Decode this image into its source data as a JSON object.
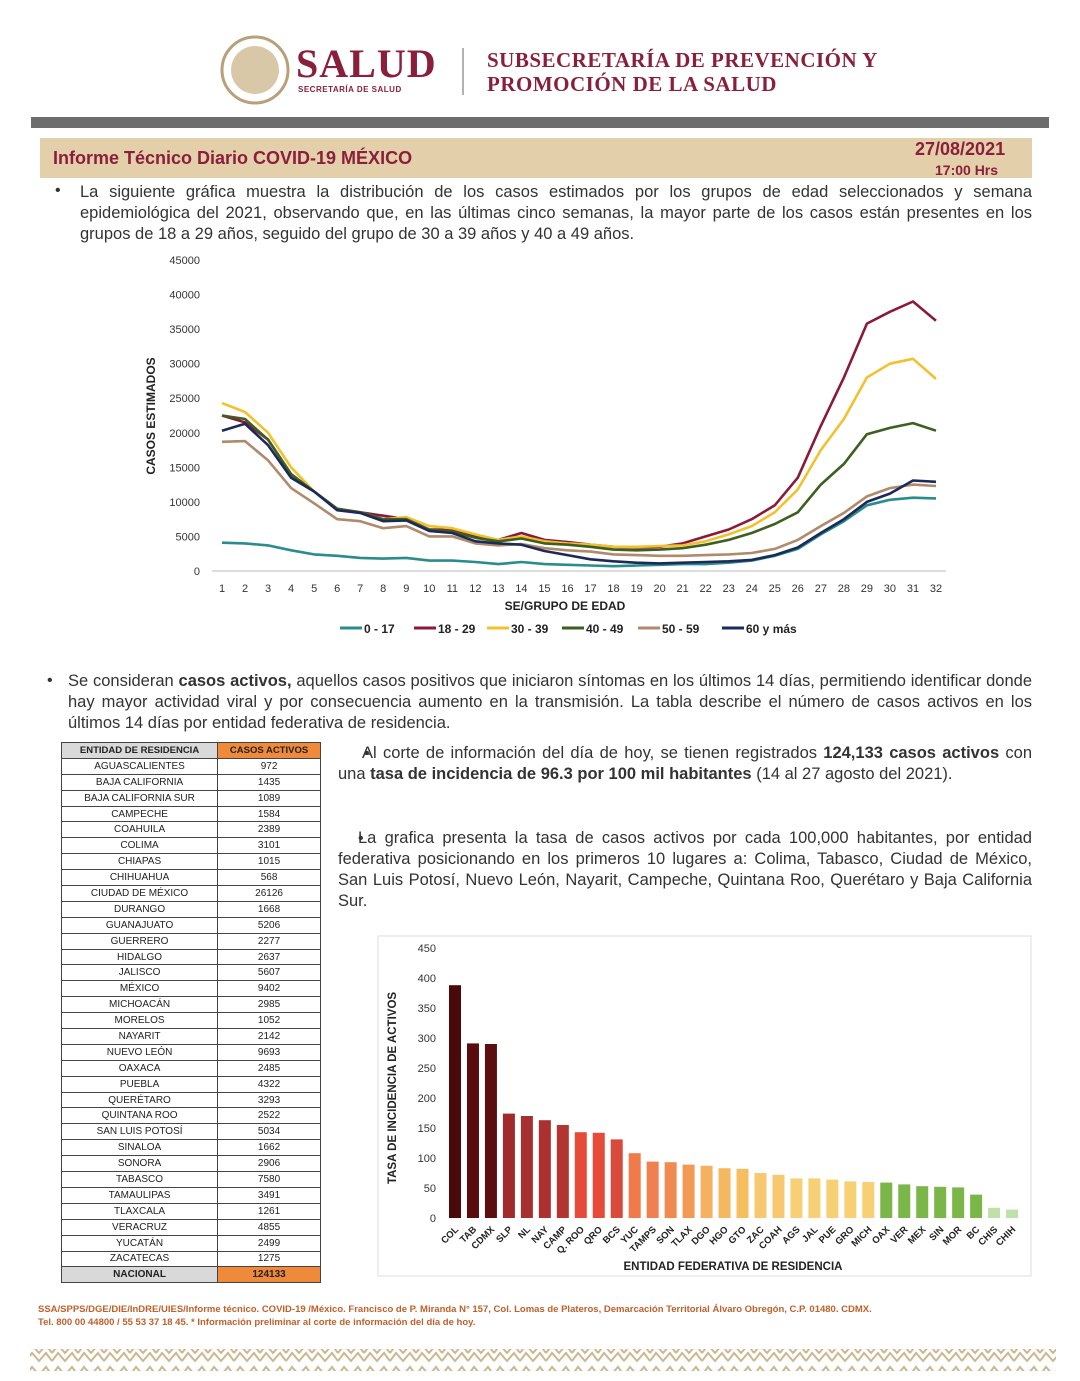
{
  "header": {
    "logo_brand": "SALUD",
    "logo_sub": "SECRETARÍA DE SALUD",
    "subsecretaria_1": "SUBSECRETARÍA DE PREVENCIÓN Y",
    "subsecretaria_2": "PROMOCIÓN DE LA SALUD"
  },
  "report": {
    "title": "Informe Técnico Diario COVID-19 MÉXICO",
    "date": "27/08/2021",
    "time": "17:00 Hrs"
  },
  "paragraphs": [
    [
      "La siguiente gráfica muestra la distribución de los casos estimados por los grupos de edad seleccionados y semana epidemiológica del 2021, observando que, en las últimas cinco semanas, la mayor parte de los casos están presentes en los grupos de 18 a 29 años, seguido del grupo de 30 a 39 años y 40 a 49 años."
    ],
    [
      "Se consideran ",
      "casos activos,",
      " aquellos casos positivos que iniciaron síntomas en los últimos 14 días, permitiendo identificar donde hay mayor actividad viral y por consecuencia aumento en la transmisión. La tabla describe el número de casos activos en los últimos 14 días por entidad federativa de residencia."
    ],
    [
      "Al corte de información del día de hoy, se tienen registrados ",
      "124,133 casos activos",
      " con una ",
      "tasa de incidencia de 96.3 por 100 mil habitantes",
      " (14 al 27 agosto del 2021)."
    ],
    [
      "La grafica presenta la tasa de casos activos por cada 100,000 habitantes, por entidad federativa posicionando en los primeros 10 lugares a: Colima, Tabasco, Ciudad de México, San Luis Potosí, Nuevo León, Nayarit, Campeche, Quintana Roo, Querétaro y Baja California Sur."
    ]
  ],
  "table": {
    "columns": [
      "ENTIDAD DE RESIDENCIA",
      "CASOS ACTIVOS"
    ],
    "rows": [
      [
        "AGUASCALIENTES",
        972
      ],
      [
        "BAJA CALIFORNIA",
        1435
      ],
      [
        "BAJA CALIFORNIA SUR",
        1089
      ],
      [
        "CAMPECHE",
        1584
      ],
      [
        "COAHUILA",
        2389
      ],
      [
        "COLIMA",
        3101
      ],
      [
        "CHIAPAS",
        1015
      ],
      [
        "CHIHUAHUA",
        568
      ],
      [
        "CIUDAD DE MÉXICO",
        26126
      ],
      [
        "DURANGO",
        1668
      ],
      [
        "GUANAJUATO",
        5206
      ],
      [
        "GUERRERO",
        2277
      ],
      [
        "HIDALGO",
        2637
      ],
      [
        "JALISCO",
        5607
      ],
      [
        "MÉXICO",
        9402
      ],
      [
        "MICHOACÁN",
        2985
      ],
      [
        "MORELOS",
        1052
      ],
      [
        "NAYARIT",
        2142
      ],
      [
        "NUEVO LEÓN",
        9693
      ],
      [
        "OAXACA",
        2485
      ],
      [
        "PUEBLA",
        4322
      ],
      [
        "QUERÉTARO",
        3293
      ],
      [
        "QUINTANA ROO",
        2522
      ],
      [
        "SAN LUIS POTOSÍ",
        5034
      ],
      [
        "SINALOA",
        1662
      ],
      [
        "SONORA",
        2906
      ],
      [
        "TABASCO",
        7580
      ],
      [
        "TAMAULIPAS",
        3491
      ],
      [
        "TLAXCALA",
        1261
      ],
      [
        "VERACRUZ",
        4855
      ],
      [
        "YUCATÁN",
        2499
      ],
      [
        "ZACATECAS",
        1275
      ]
    ],
    "total": [
      "NACIONAL",
      124133
    ]
  },
  "chart_data": [
    {
      "type": "line",
      "xlabel": "SE/GRUPO DE EDAD",
      "ylabel": "CASOS ESTIMADOS",
      "x": [
        1,
        2,
        3,
        4,
        5,
        6,
        7,
        8,
        9,
        10,
        11,
        12,
        13,
        14,
        15,
        16,
        17,
        18,
        19,
        20,
        21,
        22,
        23,
        24,
        25,
        26,
        27,
        28,
        29,
        30,
        31,
        32
      ],
      "xlim": [
        1,
        32
      ],
      "ylim": [
        0,
        45000
      ],
      "yticks": [
        0,
        5000,
        10000,
        15000,
        20000,
        25000,
        30000,
        35000,
        40000,
        45000
      ],
      "grid": false,
      "legend": "bottom",
      "series": [
        {
          "name": "0 - 17",
          "color": "#2a8c8c",
          "values": [
            4100,
            4000,
            3700,
            3000,
            2400,
            2200,
            1900,
            1800,
            1900,
            1500,
            1500,
            1300,
            1000,
            1300,
            1000,
            900,
            800,
            700,
            800,
            900,
            1000,
            1000,
            1200,
            1500,
            2200,
            3200,
            5300,
            7200,
            9500,
            10300,
            10600,
            10500
          ]
        },
        {
          "name": "18 - 29",
          "color": "#8b1a3a",
          "values": [
            22500,
            21500,
            19000,
            14000,
            11500,
            9000,
            8500,
            8000,
            7500,
            6000,
            6000,
            5000,
            4500,
            5500,
            4500,
            4200,
            3800,
            3500,
            3400,
            3500,
            4000,
            5000,
            6000,
            7500,
            9500,
            13500,
            21000,
            28000,
            35800,
            37500,
            39000,
            36200
          ]
        },
        {
          "name": "30 - 39",
          "color": "#f2c12e",
          "values": [
            24300,
            23000,
            20000,
            15000,
            11500,
            9000,
            8500,
            7500,
            7800,
            6500,
            6200,
            5300,
            4500,
            5000,
            4300,
            4000,
            3800,
            3500,
            3500,
            3600,
            3700,
            4300,
            5300,
            6500,
            8500,
            11800,
            17500,
            22000,
            28000,
            30000,
            30700,
            27800
          ]
        },
        {
          "name": "40 - 49",
          "color": "#3d5f1f",
          "values": [
            22500,
            22000,
            19000,
            14000,
            11500,
            9000,
            8500,
            7500,
            7500,
            6000,
            5700,
            4800,
            4300,
            4700,
            4000,
            3800,
            3500,
            3100,
            3000,
            3100,
            3300,
            3800,
            4500,
            5500,
            6800,
            8500,
            12500,
            15500,
            19800,
            20700,
            21400,
            20300
          ]
        },
        {
          "name": "50 - 59",
          "color": "#b08a6a",
          "values": [
            18700,
            18800,
            16000,
            12000,
            9800,
            7500,
            7200,
            6200,
            6500,
            5000,
            5000,
            4000,
            3700,
            3900,
            3300,
            3000,
            2800,
            2400,
            2300,
            2200,
            2200,
            2300,
            2400,
            2600,
            3200,
            4500,
            6500,
            8400,
            10800,
            12000,
            12500,
            12300
          ]
        },
        {
          "name": "60 y más",
          "color": "#1c2a5a",
          "values": [
            20300,
            21300,
            18200,
            13500,
            11500,
            8800,
            8400,
            7200,
            7300,
            5800,
            5500,
            4300,
            4000,
            3800,
            2900,
            2300,
            1700,
            1400,
            1200,
            1100,
            1200,
            1300,
            1400,
            1600,
            2300,
            3400,
            5500,
            7500,
            10000,
            11200,
            13100,
            12900
          ]
        }
      ]
    },
    {
      "type": "bar",
      "xlabel": "ENTIDAD FEDERATIVA DE RESIDENCIA",
      "ylabel": "TASA DE INCIDENCIA DE ACTIVOS",
      "categories": [
        "COL",
        "TAB",
        "CDMX",
        "SLP",
        "NL",
        "NAY",
        "CAMP",
        "Q. ROO",
        "QRO",
        "BCS",
        "YUC",
        "TAMPS",
        "SON",
        "TLAX",
        "DGO",
        "HGO",
        "GTO",
        "ZAC",
        "COAH",
        "AGS",
        "JAL",
        "PUE",
        "GRO",
        "MICH",
        "OAX",
        "VER",
        "MEX",
        "SIN",
        "MOR",
        "BC",
        "CHIS",
        "CHIH"
      ],
      "values": [
        388,
        291,
        290,
        174,
        170,
        163,
        155,
        143,
        142,
        131,
        108,
        94,
        93,
        89,
        87,
        83,
        82,
        75,
        72,
        66,
        66,
        64,
        61,
        60,
        59,
        56,
        53,
        52,
        51,
        39,
        17,
        14
      ],
      "colors": [
        "#4a0a0a",
        "#5a0c0c",
        "#5c0d10",
        "#a12a2a",
        "#a63030",
        "#ad3030",
        "#b33530",
        "#e84a3a",
        "#e84a3a",
        "#d94a3a",
        "#f07a4a",
        "#f08050",
        "#f08a50",
        "#f29a55",
        "#f5b060",
        "#f5b860",
        "#f5bf60",
        "#f7c870",
        "#f7c870",
        "#f7cf75",
        "#f7cf75",
        "#f7cf75",
        "#f7cf75",
        "#f7cf75",
        "#7ab648",
        "#7ab648",
        "#7ab648",
        "#7ab648",
        "#7ab648",
        "#7ab648",
        "#bfe0a8",
        "#bfe0a8"
      ],
      "ylim": [
        0,
        450
      ],
      "yticks": [
        0,
        50,
        100,
        150,
        200,
        250,
        300,
        350,
        400,
        450
      ],
      "grid": false
    }
  ],
  "footer": [
    "SSA/SPPS/DGE/DIE/InDRE/UIES/Informe técnico. COVID-19 /México. Francisco de P. Miranda N° 157, Col. Lomas de Plateros, Demarcación Territorial Álvaro Obregón, C.P. 01480. CDMX.",
    "Tel. 800 00 44800 / 55 53 37 18 45. * Información preliminar al corte de información del día de hoy."
  ]
}
